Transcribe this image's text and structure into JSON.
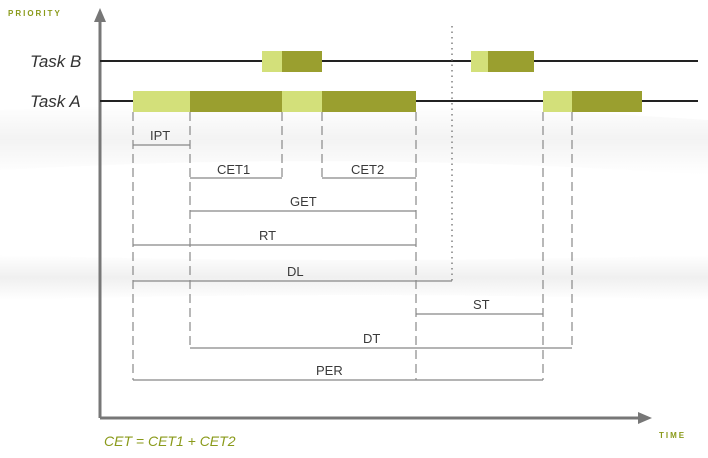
{
  "axes": {
    "y_title": "PRIORITY",
    "x_title": "TIME"
  },
  "tasks": [
    {
      "name": "Task B"
    },
    {
      "name": "Task A"
    }
  ],
  "intervals": [
    {
      "label": "IPT"
    },
    {
      "label": "CET1"
    },
    {
      "label": "CET2"
    },
    {
      "label": "GET"
    },
    {
      "label": "RT"
    },
    {
      "label": "DL"
    },
    {
      "label": "ST"
    },
    {
      "label": "DT"
    },
    {
      "label": "PER"
    }
  ],
  "formula": "CET = CET1 + CET2",
  "colors": {
    "light_green": "#d3e07a",
    "dark_olive": "#9a9f2f",
    "axis": "#777777",
    "accent_text": "#8a9a1a"
  }
}
